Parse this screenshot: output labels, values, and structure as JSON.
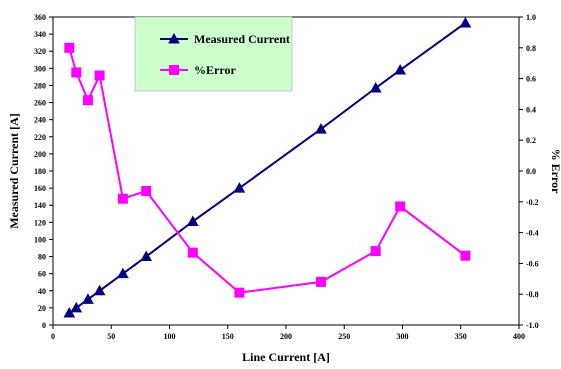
{
  "chart_data": {
    "type": "line",
    "xlabel": "Line Current [A]",
    "ylabel": "Measured Current [A]",
    "y2label": "% Error",
    "xlim": [
      0,
      400
    ],
    "ylim": [
      0,
      360
    ],
    "y2lim": [
      -1.0,
      1.0
    ],
    "x_ticks": [
      0,
      50,
      100,
      150,
      200,
      250,
      300,
      350,
      400
    ],
    "y_ticks": [
      0,
      20,
      40,
      60,
      80,
      100,
      120,
      140,
      160,
      180,
      200,
      220,
      240,
      260,
      280,
      300,
      320,
      340,
      360
    ],
    "y2_ticks": [
      "1.0",
      "0.8",
      "0.6",
      "0.4",
      "0.2",
      "0.0",
      "-0.2",
      "-0.4",
      "-0.6",
      "-0.8",
      "-1.0"
    ],
    "grid": false,
    "legend_position": "top-center",
    "series": [
      {
        "name": "Measured Current",
        "axis": "left",
        "color": "#000080",
        "marker": "triangle",
        "x": [
          14,
          20,
          30,
          40,
          60,
          80,
          120,
          160,
          230,
          277,
          298,
          354
        ],
        "y": [
          14,
          20,
          30,
          40,
          60,
          80,
          121,
          160,
          229,
          277,
          298,
          353
        ]
      },
      {
        "name": "%Error",
        "axis": "right",
        "color": "#ff00ff",
        "marker": "square",
        "x": [
          14,
          20,
          30,
          40,
          60,
          80,
          120,
          160,
          230,
          277,
          298,
          354
        ],
        "y": [
          0.8,
          0.64,
          0.46,
          0.62,
          -0.18,
          -0.13,
          -0.53,
          -0.79,
          -0.72,
          -0.52,
          -0.23,
          -0.55
        ]
      }
    ]
  }
}
